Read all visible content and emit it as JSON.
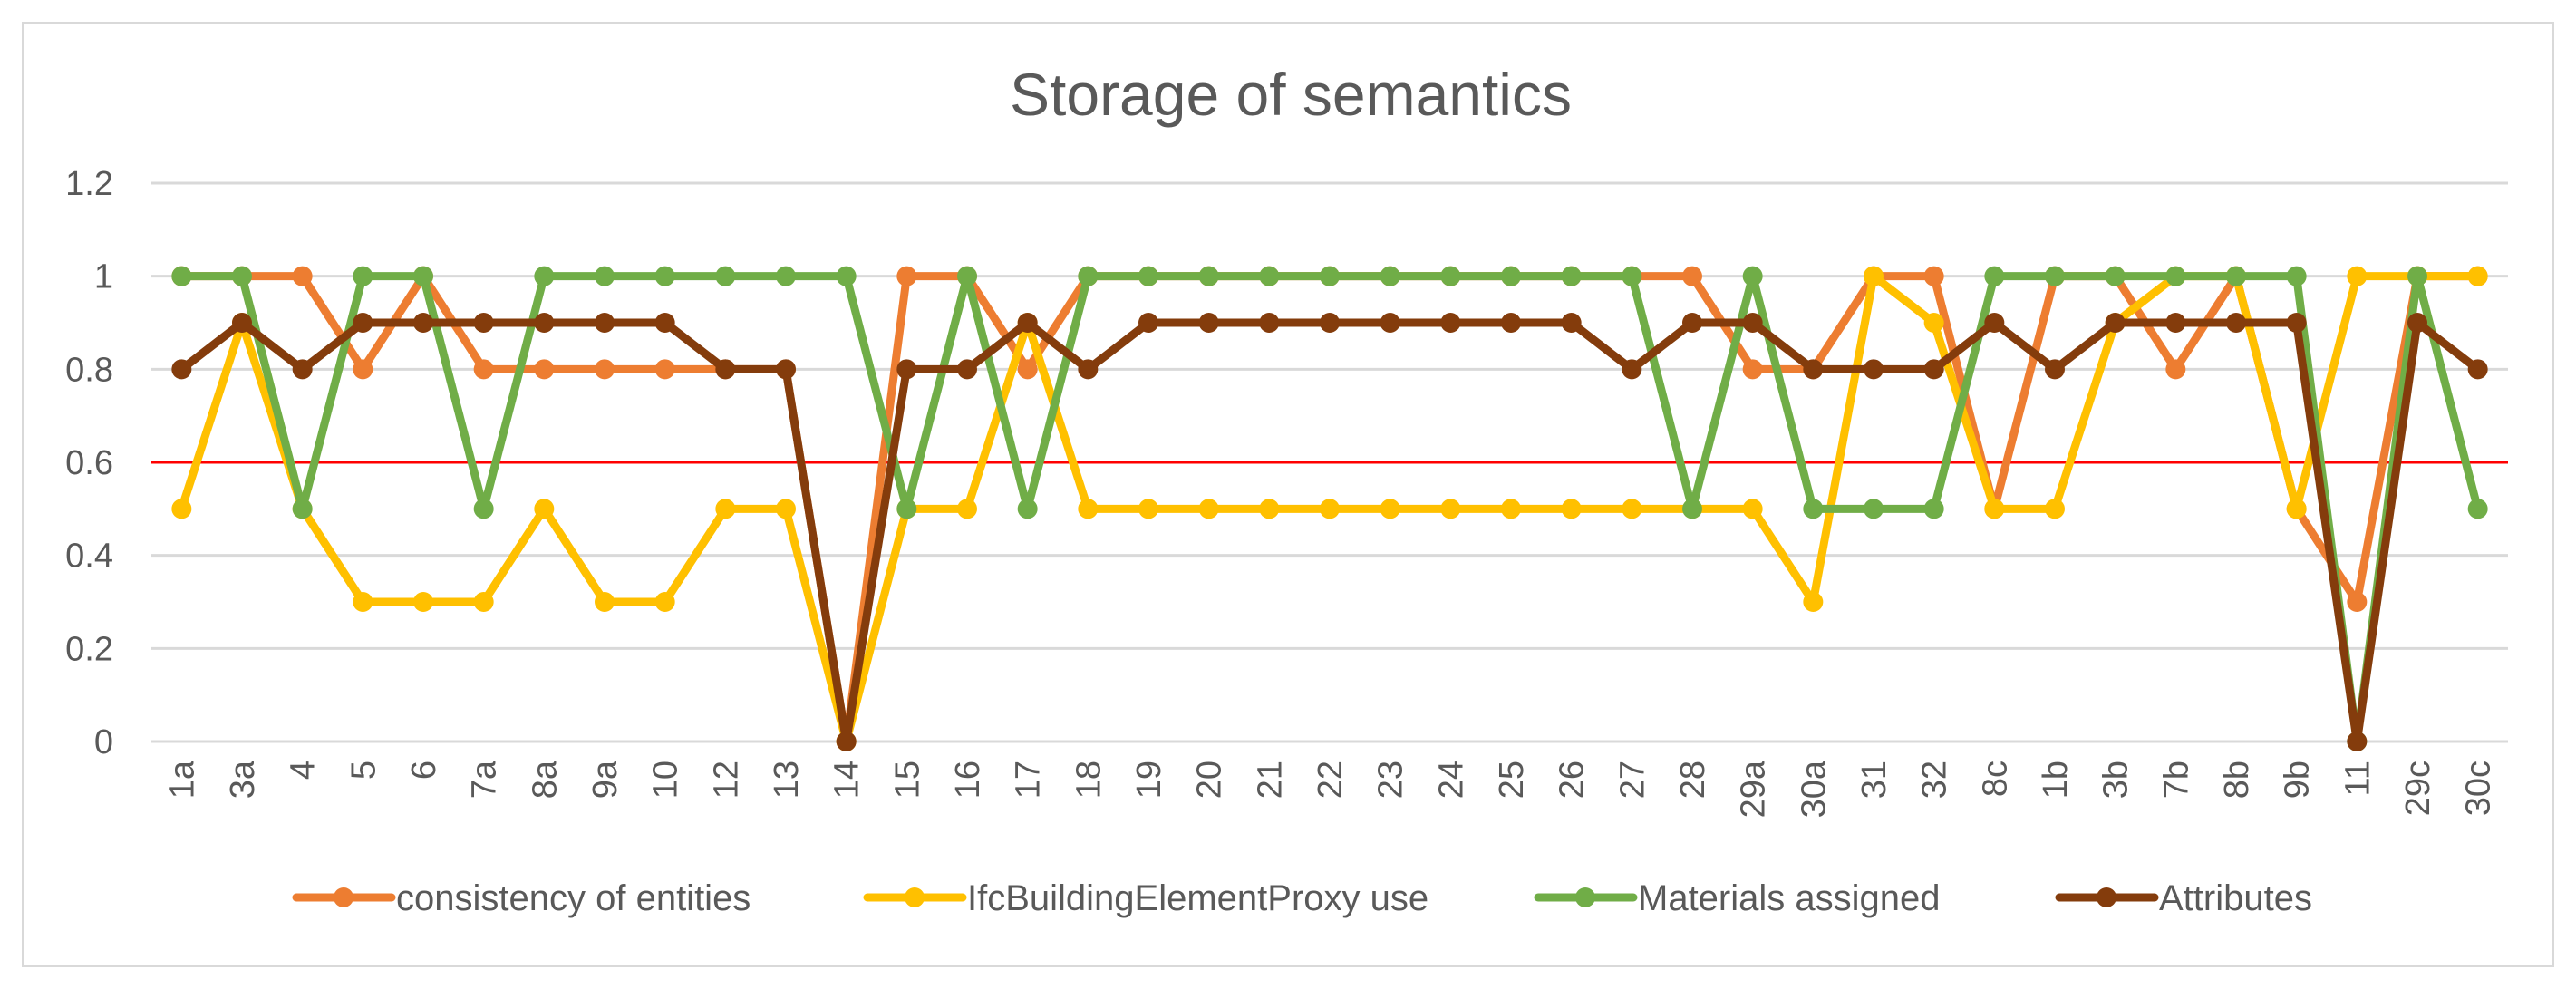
{
  "chart_data": {
    "type": "line",
    "title": "Storage of semantics",
    "categories": [
      "1a",
      "3a",
      "4",
      "5",
      "6",
      "7a",
      "8a",
      "9a",
      "10",
      "12",
      "13",
      "14",
      "15",
      "16",
      "17",
      "18",
      "19",
      "20",
      "21",
      "22",
      "23",
      "24",
      "25",
      "26",
      "27",
      "28",
      "29a",
      "30a",
      "31",
      "32",
      "8c",
      "1b",
      "3b",
      "7b",
      "8b",
      "9b",
      "11",
      "29c",
      "30c"
    ],
    "ylim": [
      0,
      1.2
    ],
    "yticks": [
      0,
      0.2,
      0.4,
      0.6,
      0.8,
      1,
      1.2
    ],
    "ytick_labels": [
      "0",
      "0.2",
      "0.4",
      "0.6",
      "0.8",
      "1",
      "1.2"
    ],
    "grid": true,
    "legend_position": "bottom",
    "threshold": {
      "value": 0.6,
      "color": "#ff0000"
    },
    "series": [
      {
        "name": "consistency of entities",
        "color": "#ed7d31",
        "values": [
          1,
          1,
          1,
          0.8,
          1,
          0.8,
          0.8,
          0.8,
          0.8,
          0.8,
          0.8,
          0,
          1,
          1,
          0.8,
          1,
          1,
          1,
          1,
          1,
          1,
          1,
          1,
          1,
          1,
          1,
          0.8,
          0.8,
          1,
          1,
          0.5,
          1,
          1,
          0.8,
          1,
          0.5,
          0.3,
          1,
          1
        ]
      },
      {
        "name": "IfcBuildingElementProxy use",
        "color": "#ffc000",
        "values": [
          0.5,
          0.9,
          0.5,
          0.3,
          0.3,
          0.3,
          0.5,
          0.3,
          0.3,
          0.5,
          0.5,
          0,
          0.5,
          0.5,
          0.9,
          0.5,
          0.5,
          0.5,
          0.5,
          0.5,
          0.5,
          0.5,
          0.5,
          0.5,
          0.5,
          0.5,
          0.5,
          0.3,
          1,
          0.9,
          0.5,
          0.5,
          0.9,
          1,
          1,
          0.5,
          1,
          1,
          1
        ]
      },
      {
        "name": "Materials assigned",
        "color": "#70ad47",
        "values": [
          1,
          1,
          0.5,
          1,
          1,
          0.5,
          1,
          1,
          1,
          1,
          1,
          1,
          0.5,
          1,
          0.5,
          1,
          1,
          1,
          1,
          1,
          1,
          1,
          1,
          1,
          1,
          0.5,
          1,
          0.5,
          0.5,
          0.5,
          1,
          1,
          1,
          1,
          1,
          1,
          0,
          1,
          0.5
        ]
      },
      {
        "name": "Attributes",
        "color": "#843c0c",
        "values": [
          0.8,
          0.9,
          0.8,
          0.9,
          0.9,
          0.9,
          0.9,
          0.9,
          0.9,
          0.8,
          0.8,
          0,
          0.8,
          0.8,
          0.9,
          0.8,
          0.9,
          0.9,
          0.9,
          0.9,
          0.9,
          0.9,
          0.9,
          0.9,
          0.8,
          0.9,
          0.9,
          0.8,
          0.8,
          0.8,
          0.9,
          0.8,
          0.9,
          0.9,
          0.9,
          0.9,
          0,
          0.9,
          0.8
        ]
      }
    ]
  }
}
